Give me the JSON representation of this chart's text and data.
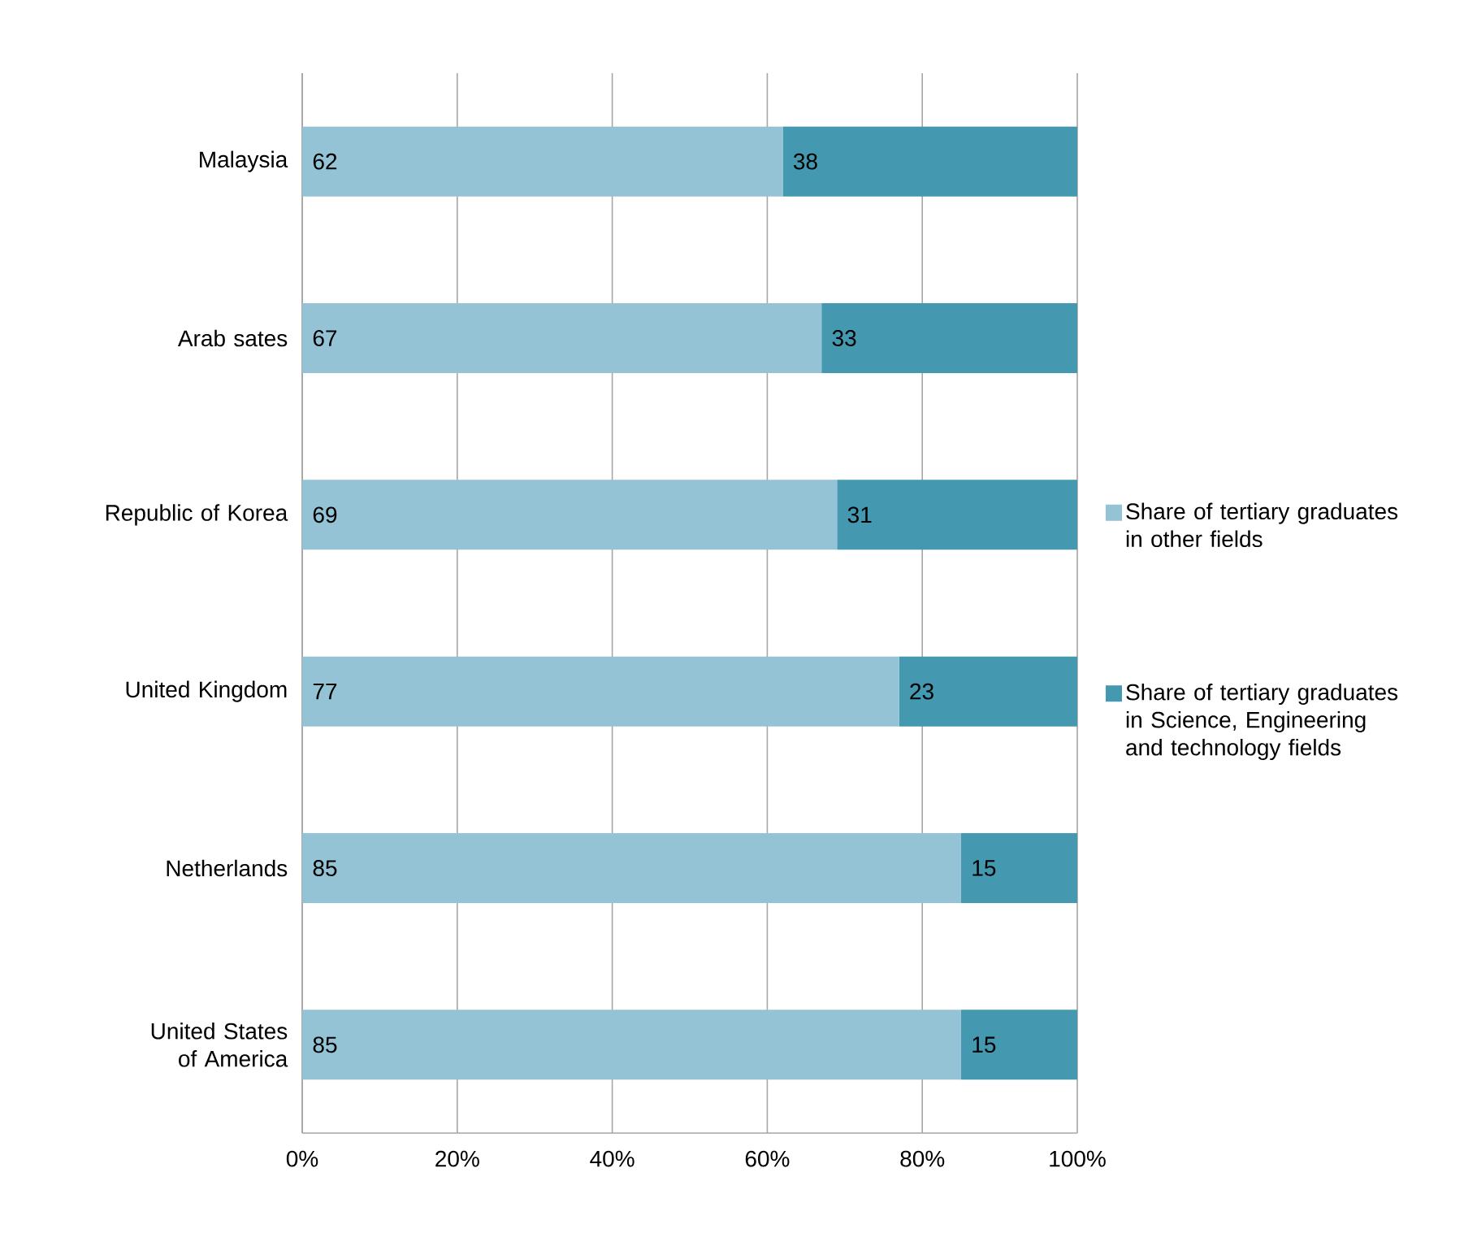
{
  "chart_data": {
    "type": "bar",
    "orientation": "horizontal",
    "stacked": true,
    "categories": [
      "Malaysia",
      "Arab sates",
      "Republic of Korea",
      "United Kingdom",
      "Netherlands",
      "United States of America"
    ],
    "series": [
      {
        "name": "Share of tertiary graduates in other fields",
        "color": "#93c3d4",
        "values": [
          62,
          67,
          69,
          77,
          85,
          85
        ]
      },
      {
        "name": "Share of tertiary graduates in Science, Engineering and technology fields",
        "color": "#4499b0",
        "values": [
          38,
          33,
          31,
          23,
          15,
          15
        ]
      }
    ],
    "xlim": [
      0,
      100
    ],
    "xticks": [
      {
        "value": 0,
        "label": "0%"
      },
      {
        "value": 20,
        "label": "20%"
      },
      {
        "value": 40,
        "label": "40%"
      },
      {
        "value": 60,
        "label": "60%"
      },
      {
        "value": 80,
        "label": "80%"
      },
      {
        "value": 100,
        "label": "100%"
      }
    ],
    "grid": "x",
    "legend": "right",
    "data_labels": true
  }
}
